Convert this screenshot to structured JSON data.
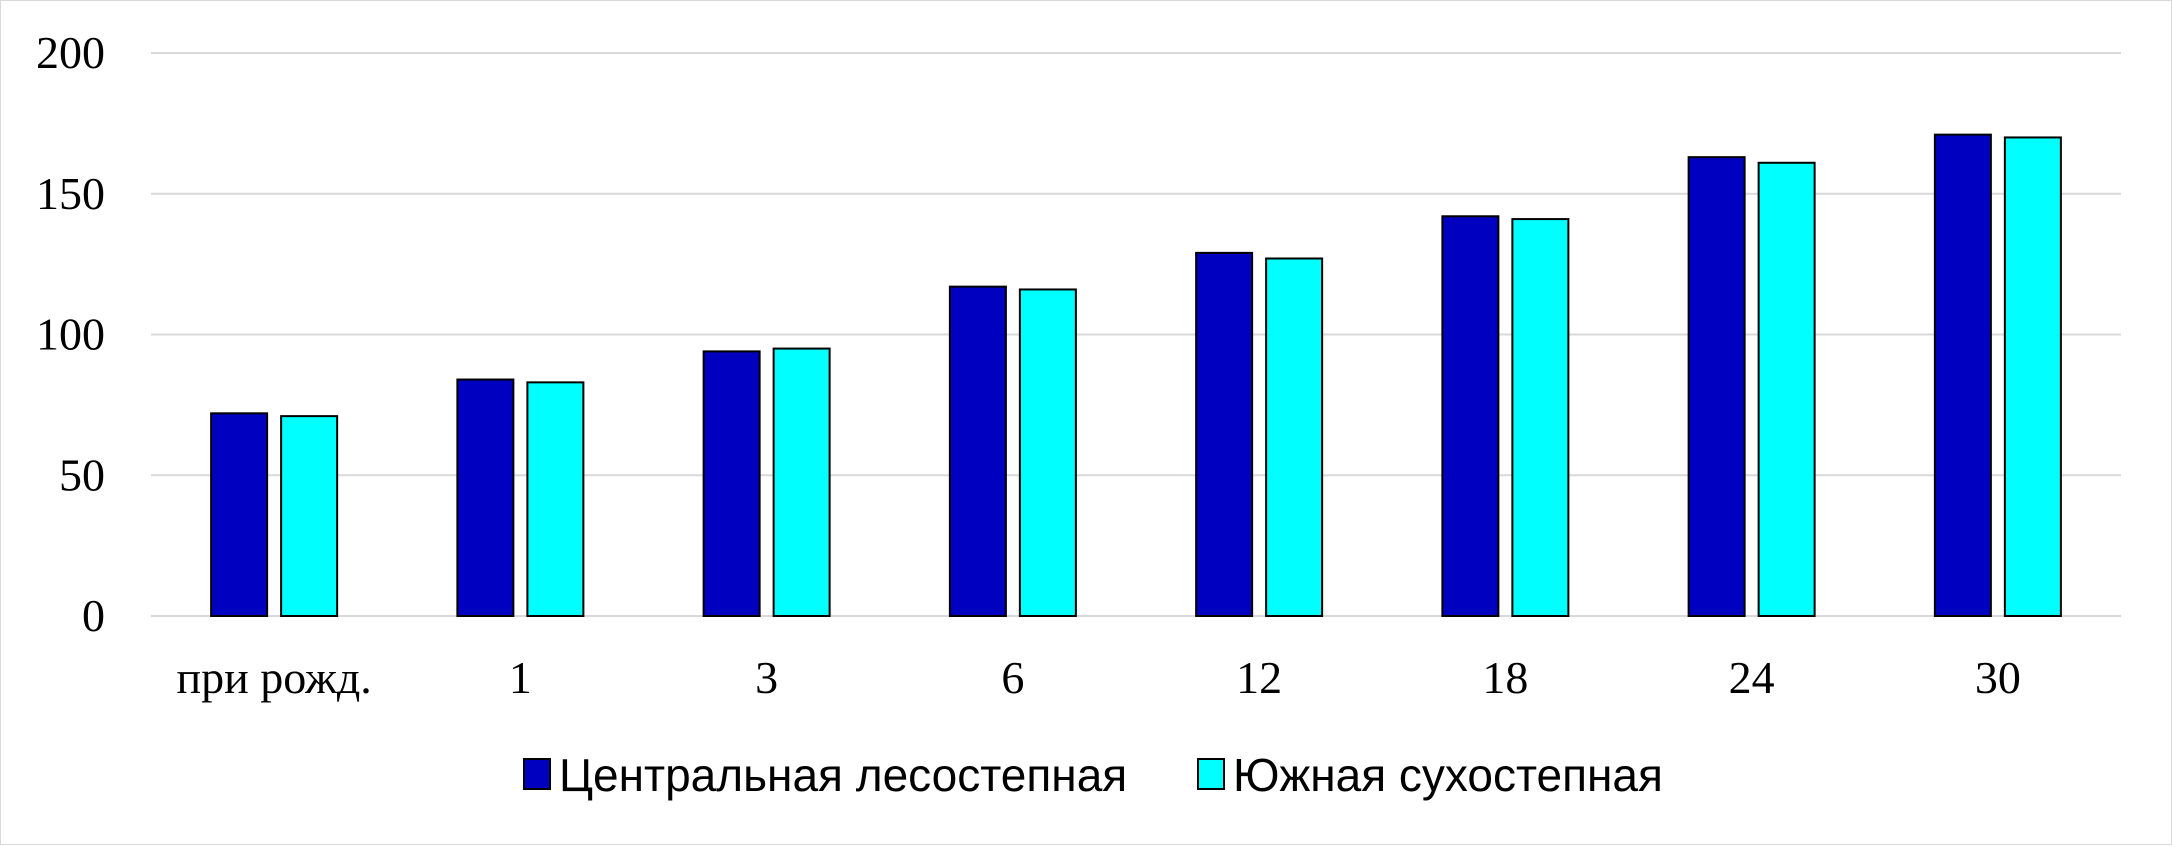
{
  "chart_data": {
    "type": "bar",
    "categories": [
      "при рожд.",
      "1",
      "3",
      "6",
      "12",
      "18",
      "24",
      "30"
    ],
    "series": [
      {
        "name": "Центральная лесостепная",
        "color": "#0000c0",
        "values": [
          72,
          84,
          94,
          117,
          129,
          142,
          163,
          171
        ]
      },
      {
        "name": "Южная сухостепная",
        "color": "#00ffff",
        "values": [
          71,
          83,
          95,
          116,
          127,
          141,
          161,
          170
        ]
      }
    ],
    "ylim": [
      0,
      200
    ],
    "yticks": [
      0,
      50,
      100,
      150,
      200
    ],
    "grid": true,
    "legend_position": "bottom",
    "bar_outline_color": "#000000",
    "grid_color": "#d9d9d9"
  }
}
